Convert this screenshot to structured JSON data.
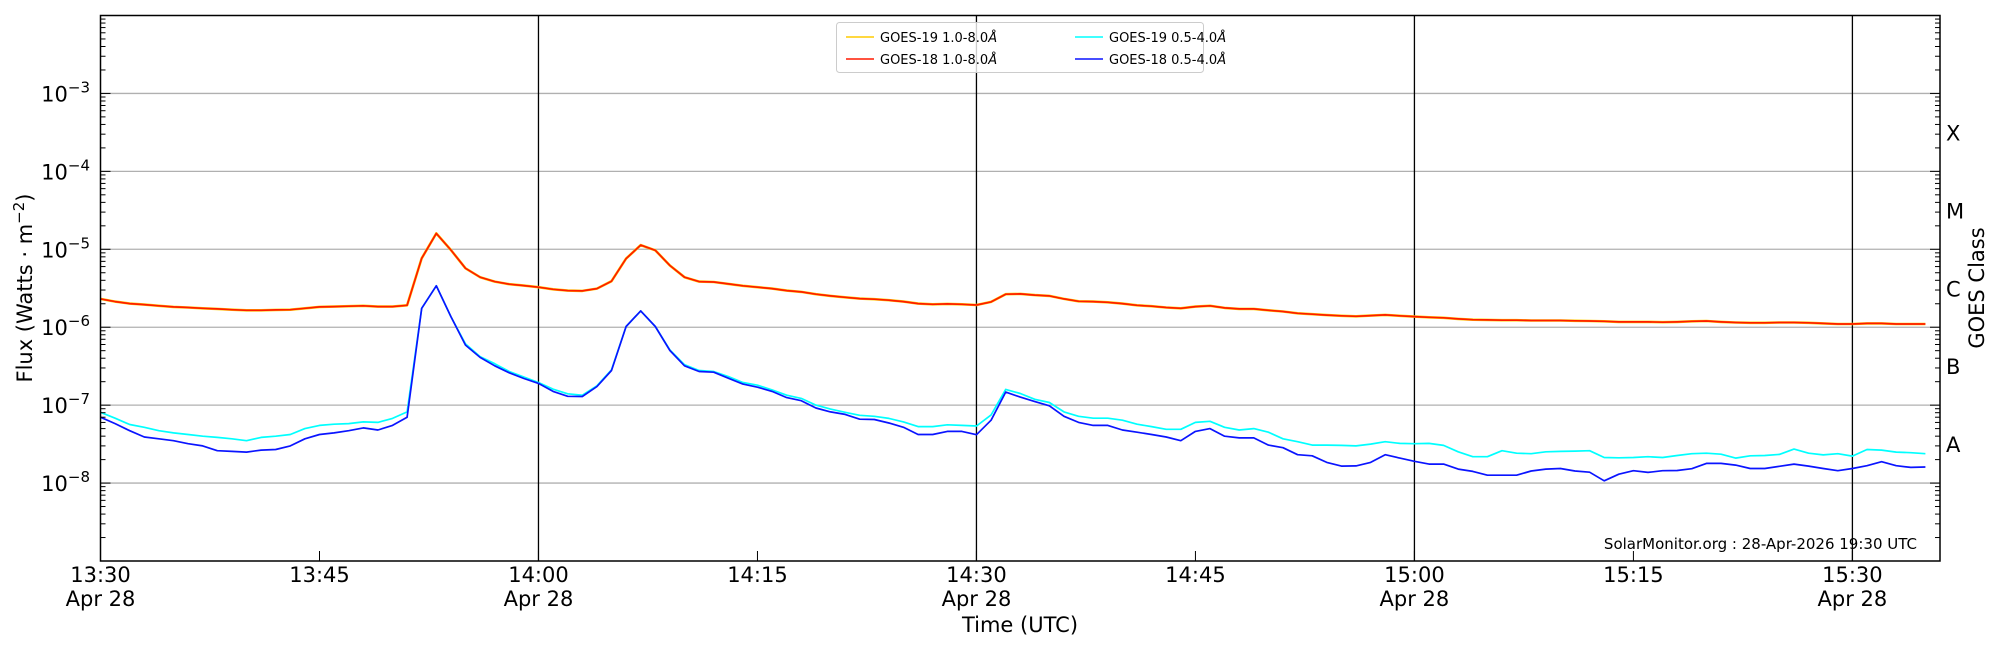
{
  "chart_data": {
    "type": "line",
    "title": "",
    "xlabel": "Time (UTC)",
    "ylabel": "Flux (Watts · m",
    "ylabel_exponent": "−2",
    "ylabel_close": ")",
    "right_label": "GOES Class",
    "y_scale": "log",
    "ylim": [
      1e-09,
      0.01
    ],
    "x_start": "13:30",
    "x_unit": "minutes since 13:30 UTC, Apr 28",
    "xlim": [
      0,
      126
    ],
    "x_step_minutes": 1,
    "y_ticks": [
      {
        "value": 0.001,
        "base": "10",
        "exp": "−3"
      },
      {
        "value": 0.0001,
        "base": "10",
        "exp": "−4"
      },
      {
        "value": 1e-05,
        "base": "10",
        "exp": "−5"
      },
      {
        "value": 1e-06,
        "base": "10",
        "exp": "−6"
      },
      {
        "value": 1e-07,
        "base": "10",
        "exp": "−7"
      },
      {
        "value": 1e-08,
        "base": "10",
        "exp": "−8"
      }
    ],
    "x_ticks": [
      {
        "minute": 0,
        "time": "13:30",
        "date": "Apr 28"
      },
      {
        "minute": 15,
        "time": "13:45",
        "date": ""
      },
      {
        "minute": 30,
        "time": "14:00",
        "date": "Apr 28"
      },
      {
        "minute": 45,
        "time": "14:15",
        "date": ""
      },
      {
        "minute": 60,
        "time": "14:30",
        "date": "Apr 28"
      },
      {
        "minute": 75,
        "time": "14:45",
        "date": ""
      },
      {
        "minute": 90,
        "time": "15:00",
        "date": "Apr 28"
      },
      {
        "minute": 105,
        "time": "15:15",
        "date": ""
      },
      {
        "minute": 120,
        "time": "15:30",
        "date": "Apr 28"
      }
    ],
    "vertical_lines_minutes": [
      30,
      60,
      90,
      120
    ],
    "goes_classes": [
      {
        "label": "X",
        "value": 0.000316
      },
      {
        "label": "M",
        "value": 3.16e-05
      },
      {
        "label": "C",
        "value": 3.16e-06
      },
      {
        "label": "B",
        "value": 3.16e-07
      },
      {
        "label": "A",
        "value": 3.16e-08
      }
    ],
    "grid": "horizontal at decades",
    "legend_position": "top-center",
    "footer": "SolarMonitor.org : 28-Apr-2026 19:30 UTC",
    "series": [
      {
        "name": "GOES-19 1.0-8.0",
        "unit_symbol": "Å",
        "color": "#ffcc00",
        "legend_col": 0,
        "legend_row": 0,
        "values": [
          2.31e-06,
          2.13e-06,
          2.01e-06,
          1.95e-06,
          1.88e-06,
          1.82e-06,
          1.79e-06,
          1.75e-06,
          1.72e-06,
          1.68e-06,
          1.65e-06,
          1.65e-06,
          1.67e-06,
          1.68e-06,
          1.75e-06,
          1.82e-06,
          1.84e-06,
          1.86e-06,
          1.88e-06,
          1.84e-06,
          1.84e-06,
          1.91e-06,
          7.67e-06,
          1.6e-05,
          9.8e-06,
          5.7e-06,
          4.38e-06,
          3.85e-06,
          3.56e-06,
          3.42e-06,
          3.26e-06,
          3.07e-06,
          2.95e-06,
          2.92e-06,
          3.13e-06,
          3.89e-06,
          7.6e-06,
          1.13e-05,
          9.7e-06,
          6.2e-06,
          4.38e-06,
          3.85e-06,
          3.8e-06,
          3.6e-06,
          3.4e-06,
          3.26e-06,
          3.13e-06,
          2.95e-06,
          2.84e-06,
          2.65e-06,
          2.52e-06,
          2.42e-06,
          2.33e-06,
          2.29e-06,
          2.22e-06,
          2.13e-06,
          2.01e-06,
          1.97e-06,
          1.99e-06,
          1.97e-06,
          1.93e-06,
          2.11e-06,
          2.65e-06,
          2.68e-06,
          2.58e-06,
          2.52e-06,
          2.31e-06,
          2.15e-06,
          2.13e-06,
          2.09e-06,
          2.01e-06,
          1.91e-06,
          1.86e-06,
          1.79e-06,
          1.75e-06,
          1.84e-06,
          1.88e-06,
          1.77e-06,
          1.72e-06,
          1.72e-06,
          1.65e-06,
          1.59e-06,
          1.51e-06,
          1.47e-06,
          1.43e-06,
          1.4e-06,
          1.38e-06,
          1.41e-06,
          1.44e-06,
          1.4e-06,
          1.37e-06,
          1.34e-06,
          1.32e-06,
          1.28e-06,
          1.25e-06,
          1.24e-06,
          1.23e-06,
          1.23e-06,
          1.22e-06,
          1.22e-06,
          1.22e-06,
          1.21e-06,
          1.2e-06,
          1.19e-06,
          1.17e-06,
          1.17e-06,
          1.17e-06,
          1.16e-06,
          1.17e-06,
          1.19e-06,
          1.2e-06,
          1.17e-06,
          1.15e-06,
          1.14e-06,
          1.14e-06,
          1.15e-06,
          1.15e-06,
          1.14e-06,
          1.12e-06,
          1.1e-06,
          1.1e-06,
          1.12e-06,
          1.12e-06,
          1.1e-06,
          1.1e-06,
          1.1e-06
        ]
      },
      {
        "name": "GOES-18 1.0-8.0",
        "unit_symbol": "Å",
        "color": "#ff1a00",
        "legend_col": 0,
        "legend_row": 1,
        "values": [
          2.31e-06,
          2.13e-06,
          2.01e-06,
          1.95e-06,
          1.88e-06,
          1.82e-06,
          1.79e-06,
          1.75e-06,
          1.72e-06,
          1.68e-06,
          1.65e-06,
          1.65e-06,
          1.67e-06,
          1.68e-06,
          1.75e-06,
          1.82e-06,
          1.84e-06,
          1.86e-06,
          1.88e-06,
          1.84e-06,
          1.84e-06,
          1.91e-06,
          7.67e-06,
          1.6e-05,
          9.8e-06,
          5.7e-06,
          4.38e-06,
          3.85e-06,
          3.56e-06,
          3.42e-06,
          3.26e-06,
          3.07e-06,
          2.95e-06,
          2.92e-06,
          3.13e-06,
          3.89e-06,
          7.6e-06,
          1.13e-05,
          9.7e-06,
          6.2e-06,
          4.38e-06,
          3.85e-06,
          3.8e-06,
          3.6e-06,
          3.4e-06,
          3.26e-06,
          3.13e-06,
          2.95e-06,
          2.84e-06,
          2.65e-06,
          2.52e-06,
          2.42e-06,
          2.33e-06,
          2.29e-06,
          2.22e-06,
          2.13e-06,
          2.01e-06,
          1.97e-06,
          1.99e-06,
          1.97e-06,
          1.93e-06,
          2.11e-06,
          2.65e-06,
          2.68e-06,
          2.58e-06,
          2.52e-06,
          2.31e-06,
          2.15e-06,
          2.13e-06,
          2.09e-06,
          2.01e-06,
          1.91e-06,
          1.86e-06,
          1.79e-06,
          1.75e-06,
          1.84e-06,
          1.88e-06,
          1.77e-06,
          1.72e-06,
          1.72e-06,
          1.65e-06,
          1.59e-06,
          1.51e-06,
          1.47e-06,
          1.43e-06,
          1.4e-06,
          1.38e-06,
          1.41e-06,
          1.44e-06,
          1.4e-06,
          1.37e-06,
          1.34e-06,
          1.32e-06,
          1.28e-06,
          1.25e-06,
          1.24e-06,
          1.23e-06,
          1.23e-06,
          1.22e-06,
          1.22e-06,
          1.22e-06,
          1.21e-06,
          1.2e-06,
          1.19e-06,
          1.17e-06,
          1.17e-06,
          1.17e-06,
          1.16e-06,
          1.17e-06,
          1.19e-06,
          1.2e-06,
          1.17e-06,
          1.15e-06,
          1.14e-06,
          1.14e-06,
          1.15e-06,
          1.15e-06,
          1.14e-06,
          1.12e-06,
          1.1e-06,
          1.1e-06,
          1.12e-06,
          1.12e-06,
          1.1e-06,
          1.1e-06,
          1.1e-06
        ]
      },
      {
        "name": "GOES-19 0.5-4.0",
        "unit_symbol": "Å",
        "color": "#00ffff",
        "legend_col": 1,
        "legend_row": 0,
        "values": [
          8.1e-08,
          6.8e-08,
          5.65e-08,
          5.2e-08,
          4.7e-08,
          4.4e-08,
          4.2e-08,
          4e-08,
          3.85e-08,
          3.7e-08,
          3.5e-08,
          3.85e-08,
          4e-08,
          4.2e-08,
          5e-08,
          5.5e-08,
          5.7e-08,
          5.8e-08,
          6.1e-08,
          6e-08,
          6.75e-08,
          8.2e-08,
          1.75e-06,
          3.4e-06,
          1.37e-06,
          6.1e-07,
          4.2e-07,
          3.4e-07,
          2.7e-07,
          2.3e-07,
          1.95e-07,
          1.6e-07,
          1.4e-07,
          1.34e-07,
          1.77e-07,
          2.84e-07,
          1.02e-06,
          1.62e-06,
          1.02e-06,
          5.1e-07,
          3.3e-07,
          2.78e-07,
          2.7e-07,
          2.33e-07,
          1.95e-07,
          1.8e-07,
          1.57e-07,
          1.34e-07,
          1.22e-07,
          1e-07,
          8.9e-08,
          8.1e-08,
          7.4e-08,
          7.2e-08,
          6.75e-08,
          6.1e-08,
          5.3e-08,
          5.3e-08,
          5.6e-08,
          5.5e-08,
          5.4e-08,
          7.5e-08,
          1.59e-07,
          1.41e-07,
          1.19e-07,
          1.08e-07,
          8.2e-08,
          7.2e-08,
          6.8e-08,
          6.8e-08,
          6.4e-08,
          5.7e-08,
          5.3e-08,
          4.9e-08,
          4.9e-08,
          6e-08,
          6.2e-08,
          5.2e-08,
          4.8e-08,
          5e-08,
          4.5e-08,
          3.7e-08,
          3.4e-08,
          3.07e-08,
          3.07e-08,
          3.04e-08,
          3e-08,
          3.16e-08,
          3.4e-08,
          3.23e-08,
          3.2e-08,
          3.23e-08,
          3.04e-08,
          2.52e-08,
          2.18e-08,
          2.18e-08,
          2.6e-08,
          2.42e-08,
          2.38e-08,
          2.52e-08,
          2.55e-08,
          2.57e-08,
          2.6e-08,
          2.13e-08,
          2.11e-08,
          2.13e-08,
          2.18e-08,
          2.13e-08,
          2.26e-08,
          2.38e-08,
          2.42e-08,
          2.35e-08,
          2.09e-08,
          2.24e-08,
          2.26e-08,
          2.33e-08,
          2.73e-08,
          2.42e-08,
          2.3e-08,
          2.38e-08,
          2.22e-08,
          2.7e-08,
          2.65e-08,
          2.5e-08,
          2.45e-08,
          2.38e-08
        ]
      },
      {
        "name": "GOES-18 0.5-4.0",
        "unit_symbol": "Å",
        "color": "#0a14ff",
        "legend_col": 1,
        "legend_row": 1,
        "values": [
          7e-08,
          5.8e-08,
          4.7e-08,
          3.9e-08,
          3.7e-08,
          3.5e-08,
          3.2e-08,
          3e-08,
          2.6e-08,
          2.55e-08,
          2.5e-08,
          2.65e-08,
          2.7e-08,
          3e-08,
          3.7e-08,
          4.2e-08,
          4.4e-08,
          4.7e-08,
          5.1e-08,
          4.8e-08,
          5.5e-08,
          7e-08,
          1.75e-06,
          3.4e-06,
          1.37e-06,
          5.9e-07,
          4.1e-07,
          3.2e-07,
          2.6e-07,
          2.2e-07,
          1.9e-07,
          1.5e-07,
          1.3e-07,
          1.29e-07,
          1.73e-07,
          2.78e-07,
          1.02e-06,
          1.62e-06,
          1.02e-06,
          5.02e-07,
          3.2e-07,
          2.7e-07,
          2.65e-07,
          2.22e-07,
          1.86e-07,
          1.7e-07,
          1.5e-07,
          1.25e-07,
          1.14e-07,
          9.2e-08,
          8.2e-08,
          7.6e-08,
          6.6e-08,
          6.55e-08,
          5.9e-08,
          5.2e-08,
          4.2e-08,
          4.2e-08,
          4.6e-08,
          4.6e-08,
          4.17e-08,
          6.4e-08,
          1.47e-07,
          1.27e-07,
          1.11e-07,
          9.8e-08,
          7.2e-08,
          6e-08,
          5.5e-08,
          5.5e-08,
          4.8e-08,
          4.5e-08,
          4.2e-08,
          3.9e-08,
          3.5e-08,
          4.6e-08,
          5e-08,
          4e-08,
          3.8e-08,
          3.8e-08,
          3.07e-08,
          2.84e-08,
          2.31e-08,
          2.24e-08,
          1.84e-08,
          1.65e-08,
          1.66e-08,
          1.84e-08,
          2.31e-08,
          2.09e-08,
          1.9e-08,
          1.75e-08,
          1.75e-08,
          1.51e-08,
          1.41e-08,
          1.26e-08,
          1.26e-08,
          1.26e-08,
          1.43e-08,
          1.51e-08,
          1.54e-08,
          1.43e-08,
          1.38e-08,
          1.07e-08,
          1.3e-08,
          1.44e-08,
          1.37e-08,
          1.44e-08,
          1.45e-08,
          1.53e-08,
          1.79e-08,
          1.79e-08,
          1.7e-08,
          1.54e-08,
          1.54e-08,
          1.64e-08,
          1.75e-08,
          1.65e-08,
          1.54e-08,
          1.44e-08,
          1.54e-08,
          1.67e-08,
          1.88e-08,
          1.67e-08,
          1.59e-08,
          1.61e-08
        ]
      }
    ]
  }
}
